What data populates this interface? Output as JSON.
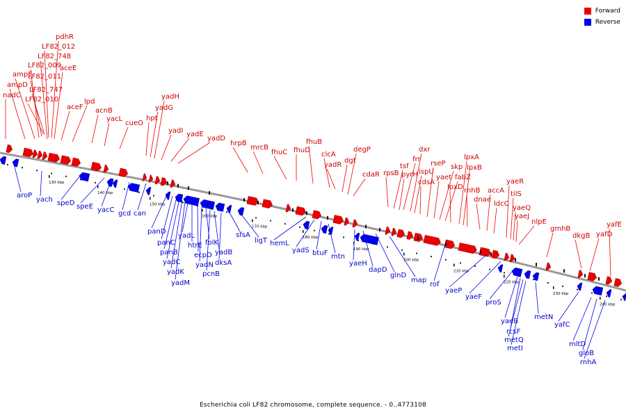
{
  "legend": {
    "forward_label": "Forward",
    "reverse_label": "Reverse",
    "forward_color": "#ee0000",
    "reverse_color": "#0000ee"
  },
  "caption": "Escherichia coli LF82 chromosome, complete sequence. - 0..4773108",
  "axis_ticks": [
    "130 kbp",
    "140 kbp",
    "150 kbp",
    "160 kbp",
    "170 kbp",
    "180 kbp",
    "190 kbp",
    "200 kbp",
    "210 kbp",
    "220 kbp",
    "230 kbp",
    "240 kbp"
  ],
  "forward_genes": [
    "nadC",
    "ampD",
    "ampE",
    "LF82_009",
    "LF82_011",
    "LF82_747",
    "LF82_010",
    "LF82_748",
    "LF82_012",
    "pdhR",
    "aceE",
    "aceF",
    "lpd",
    "acnB",
    "yacL",
    "cueO",
    "hpt",
    "yadG",
    "yadH",
    "yadI",
    "yadE",
    "yadD",
    "hrpB",
    "mrcB",
    "fhuC",
    "fhuD",
    "fhuB",
    "clcA",
    "yadR",
    "dgt",
    "degP",
    "cdaR",
    "rpsB",
    "tsf",
    "pyrH",
    "frr",
    "dxr",
    "ispU",
    "cdsA",
    "rseP",
    "yaet",
    "skp",
    "fabZ",
    "lpxD",
    "lpxA",
    "lpxB",
    "rnhB",
    "dnae",
    "accA",
    "ldcC",
    "yaeR",
    "tilS",
    "yaeQ",
    "yaeJ",
    "nlpE",
    "gmhB",
    "dkgB",
    "yafD",
    "yafE"
  ],
  "reverse_genes": [
    "aroP",
    "yach",
    "speD",
    "speE",
    "yacC",
    "gcd",
    "can",
    "panD",
    "panC",
    "panB",
    "yadC",
    "yadK",
    "yadM",
    "yadL",
    "htrE",
    "ecpD",
    "yadN",
    "folK",
    "pcnB",
    "yadB",
    "dksA",
    "sfsA",
    "ligT",
    "hemL",
    "yadS",
    "btuF",
    "mtn",
    "yaeH",
    "dapD",
    "glnD",
    "map",
    "rof",
    "yaeP",
    "yaeF",
    "proS",
    "yaeB",
    "rcsF",
    "metQ",
    "metI",
    "metN",
    "yafC",
    "mltD",
    "gloB",
    "rnhA"
  ]
}
